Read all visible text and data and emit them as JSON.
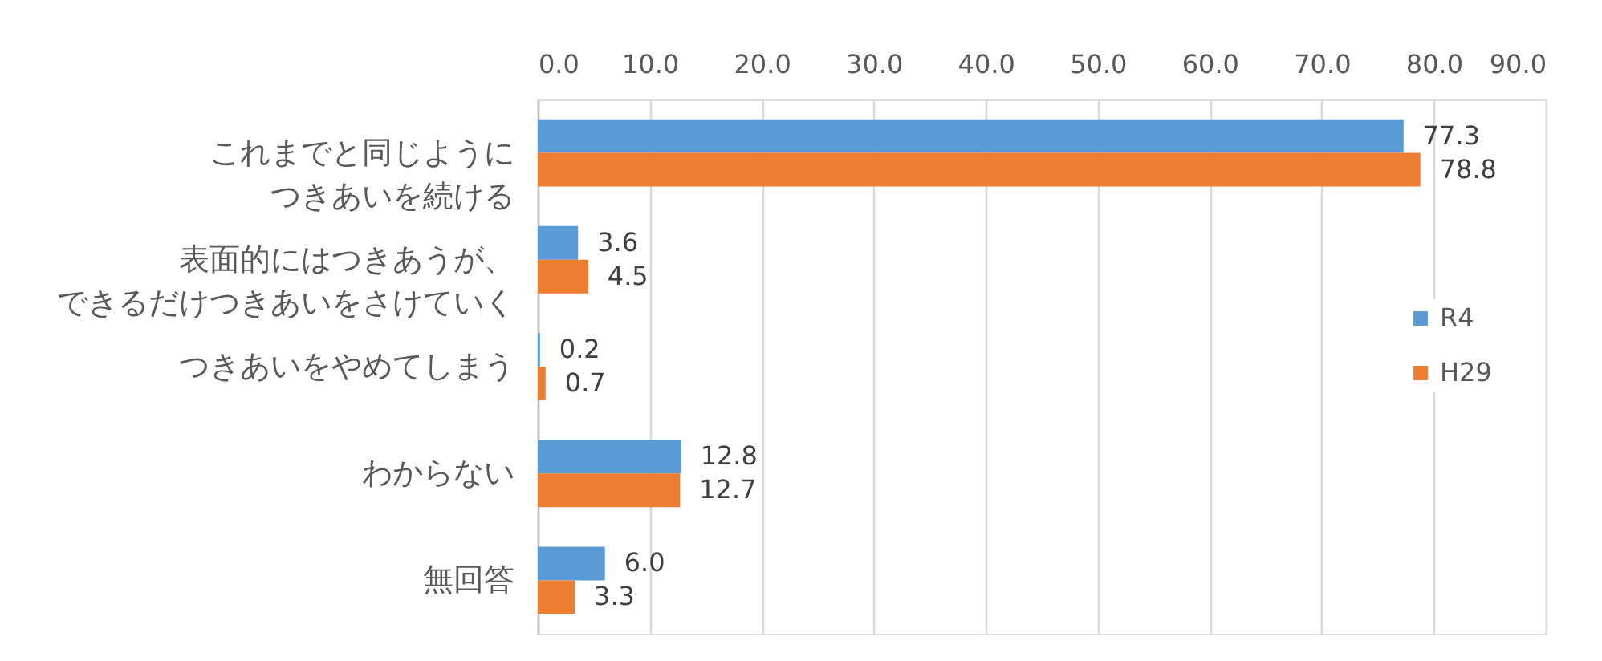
{
  "chart_data": {
    "type": "bar",
    "orientation": "horizontal",
    "categories": [
      "これまでと同じようにつきあいを続ける",
      "表面的にはつきあうが、できるだけつきあいをさけていく",
      "つきあいをやめてしまう",
      "わからない",
      "無回答"
    ],
    "series": [
      {
        "name": "R4",
        "color": "#5b9bd5",
        "values": [
          77.3,
          3.6,
          0.2,
          12.8,
          6.0
        ],
        "value_labels": [
          "77.3",
          "3.6",
          "0.2",
          "12.8",
          "6.0"
        ]
      },
      {
        "name": "H29",
        "color": "#ed7d31",
        "values": [
          78.8,
          4.5,
          0.7,
          12.7,
          3.3
        ],
        "value_labels": [
          "78.8",
          "4.5",
          "0.7",
          "12.7",
          "3.3"
        ]
      }
    ],
    "xlim": [
      0,
      90
    ],
    "xticks": [
      {
        "value": 0,
        "label": "0.0"
      },
      {
        "value": 10,
        "label": "10.0"
      },
      {
        "value": 20,
        "label": "20.0"
      },
      {
        "value": 30,
        "label": "30.0"
      },
      {
        "value": 40,
        "label": "40.0"
      },
      {
        "value": 50,
        "label": "50.0"
      },
      {
        "value": 60,
        "label": "60.0"
      },
      {
        "value": 70,
        "label": "70.0"
      },
      {
        "value": 80,
        "label": "80.0"
      },
      {
        "value": 90,
        "label": "90.0"
      }
    ],
    "grid": true,
    "legend": "right"
  }
}
